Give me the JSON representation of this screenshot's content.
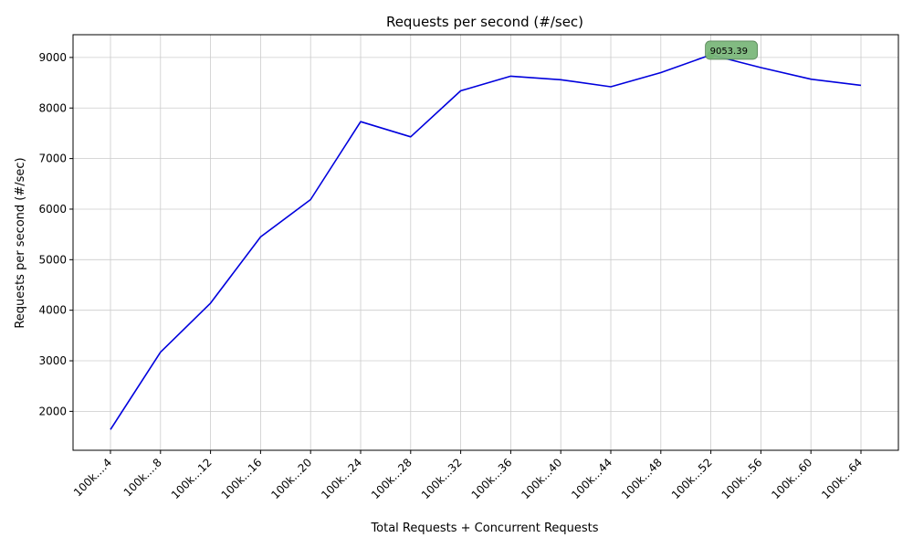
{
  "chart_data": {
    "type": "line",
    "title": "Requests per second (#/sec)",
    "xlabel": "Total Requests + Concurrent Requests",
    "ylabel": "Requests per second (#/sec)",
    "categories": [
      "100k....4",
      "100k....8",
      "100k...12",
      "100k...16",
      "100k...20",
      "100k...24",
      "100k...28",
      "100k...32",
      "100k...36",
      "100k...40",
      "100k...44",
      "100k...48",
      "100k...52",
      "100k...56",
      "100k...60",
      "100k...64"
    ],
    "series": [
      {
        "values": [
          1640,
          3170,
          4140,
          5450,
          6190,
          7730,
          7430,
          8340,
          8630,
          8560,
          8420,
          8700,
          9053.39,
          8800,
          8570,
          8450
        ],
        "color": "#0000dd"
      }
    ],
    "ylim": [
      1230,
      9450
    ],
    "yticks": [
      2000,
      3000,
      4000,
      5000,
      6000,
      7000,
      8000,
      9000
    ],
    "grid": true,
    "annotation": {
      "index": 12,
      "text": "9053.39",
      "marker_color": "#008000",
      "box_color": "#7cb87c"
    }
  }
}
